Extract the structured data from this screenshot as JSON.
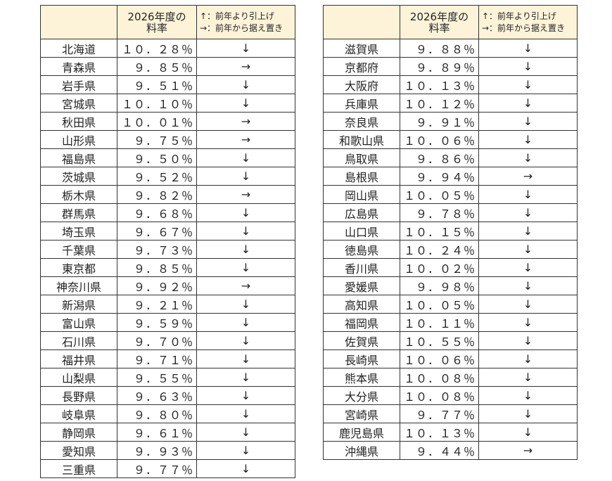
{
  "tables": [
    {
      "headers": [
        "",
        [
          "2026年度の",
          "料率"
        ],
        [
          "↑：前年より引上げ",
          "→：前年から据え置き"
        ]
      ],
      "rows": [
        [
          "北海道",
          "１０．２８％",
          "↓"
        ],
        [
          "青森県",
          "９．８５％",
          "→"
        ],
        [
          "岩手県",
          "９．５１％",
          "↓"
        ],
        [
          "宮城県",
          "１０．１０％",
          "↓"
        ],
        [
          "秋田県",
          "１０．０１％",
          "→"
        ],
        [
          "山形県",
          "９．７５％",
          "→"
        ],
        [
          "福島県",
          "９．５０％",
          "↓"
        ],
        [
          "茨城県",
          "９．５２％",
          "↓"
        ],
        [
          "栃木県",
          "９．８２％",
          "→"
        ],
        [
          "群馬県",
          "９．６８％",
          "↓"
        ],
        [
          "埼玉県",
          "９．６７％",
          "↓"
        ],
        [
          "千葉県",
          "９．７３％",
          "↓"
        ],
        [
          "東京都",
          "９．８５％",
          "↓"
        ],
        [
          "神奈川県",
          "９．９２％",
          "→"
        ],
        [
          "新潟県",
          "９．２１％",
          "↓"
        ],
        [
          "富山県",
          "９．５９％",
          "↓"
        ],
        [
          "石川県",
          "９．７０％",
          "↓"
        ],
        [
          "福井県",
          "９．７１％",
          "↓"
        ],
        [
          "山梨県",
          "９．５５％",
          "↓"
        ],
        [
          "長野県",
          "９．６３％",
          "↓"
        ],
        [
          "岐阜県",
          "９．８０％",
          "↓"
        ],
        [
          "静岡県",
          "９．６１％",
          "↓"
        ],
        [
          "愛知県",
          "９．９３％",
          "↓"
        ],
        [
          "三重県",
          "９．７７％",
          "↓"
        ]
      ]
    },
    {
      "headers": [
        "",
        [
          "2026年度の",
          "料率"
        ],
        [
          "↑：前年より引上げ",
          "→：前年から据え置き"
        ]
      ],
      "rows": [
        [
          "滋賀県",
          "９．８８％",
          "↓"
        ],
        [
          "京都府",
          "９．８９％",
          "↓"
        ],
        [
          "大阪府",
          "１０．１３％",
          "↓"
        ],
        [
          "兵庫県",
          "１０．１２％",
          "↓"
        ],
        [
          "奈良県",
          "９．９１％",
          "↓"
        ],
        [
          "和歌山県",
          "１０．０６％",
          "↓"
        ],
        [
          "鳥取県",
          "９．８６％",
          "↓"
        ],
        [
          "島根県",
          "９．９４％",
          "→"
        ],
        [
          "岡山県",
          "１０．０５％",
          "↓"
        ],
        [
          "広島県",
          "９．７８％",
          "↓"
        ],
        [
          "山口県",
          "１０．１５％",
          "↓"
        ],
        [
          "徳島県",
          "１０．２４％",
          "↓"
        ],
        [
          "香川県",
          "１０．０２％",
          "↓"
        ],
        [
          "愛媛県",
          "９．９８％",
          "↓"
        ],
        [
          "高知県",
          "１０．０５％",
          "↓"
        ],
        [
          "福岡県",
          "１０．１１％",
          "↓"
        ],
        [
          "佐賀県",
          "１０．５５％",
          "↓"
        ],
        [
          "長崎県",
          "１０．０６％",
          "↓"
        ],
        [
          "熊本県",
          "１０．０８％",
          "↓"
        ],
        [
          "大分県",
          "１０．０８％",
          "↓"
        ],
        [
          "宮崎県",
          "９．７７％",
          "↓"
        ],
        [
          "鹿児島県",
          "１０．１３％",
          "↓"
        ],
        [
          "沖縄県",
          "９．４４％",
          "→"
        ]
      ]
    }
  ]
}
